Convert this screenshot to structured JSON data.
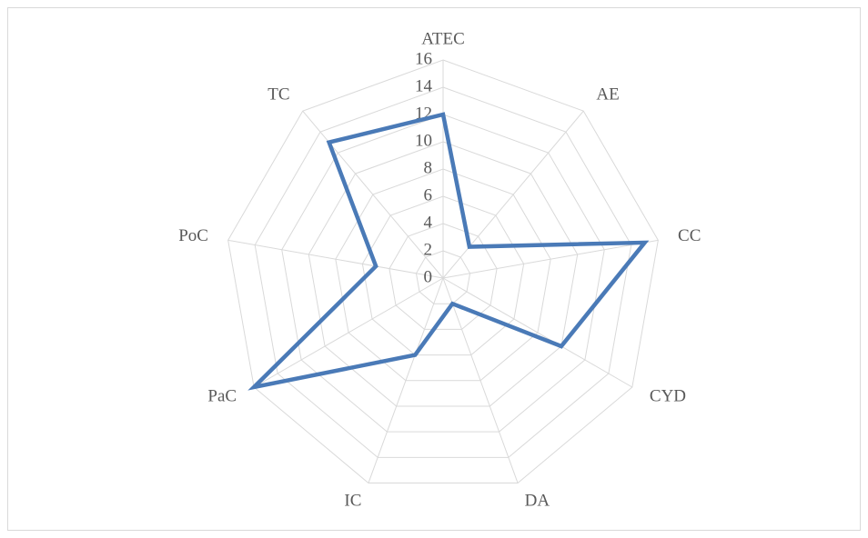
{
  "chart_data": {
    "type": "radar",
    "categories": [
      "ATEC",
      "AE",
      "CC",
      "CYD",
      "DA",
      "IC",
      "PaC",
      "PoC",
      "TC"
    ],
    "values": [
      12,
      3,
      15,
      10,
      2,
      6,
      16,
      5,
      13
    ],
    "color": "#4a7ab7",
    "ylim": [
      0,
      16
    ],
    "yticks": [
      0,
      2,
      4,
      6,
      8,
      10,
      12,
      14,
      16
    ],
    "grid": true
  }
}
